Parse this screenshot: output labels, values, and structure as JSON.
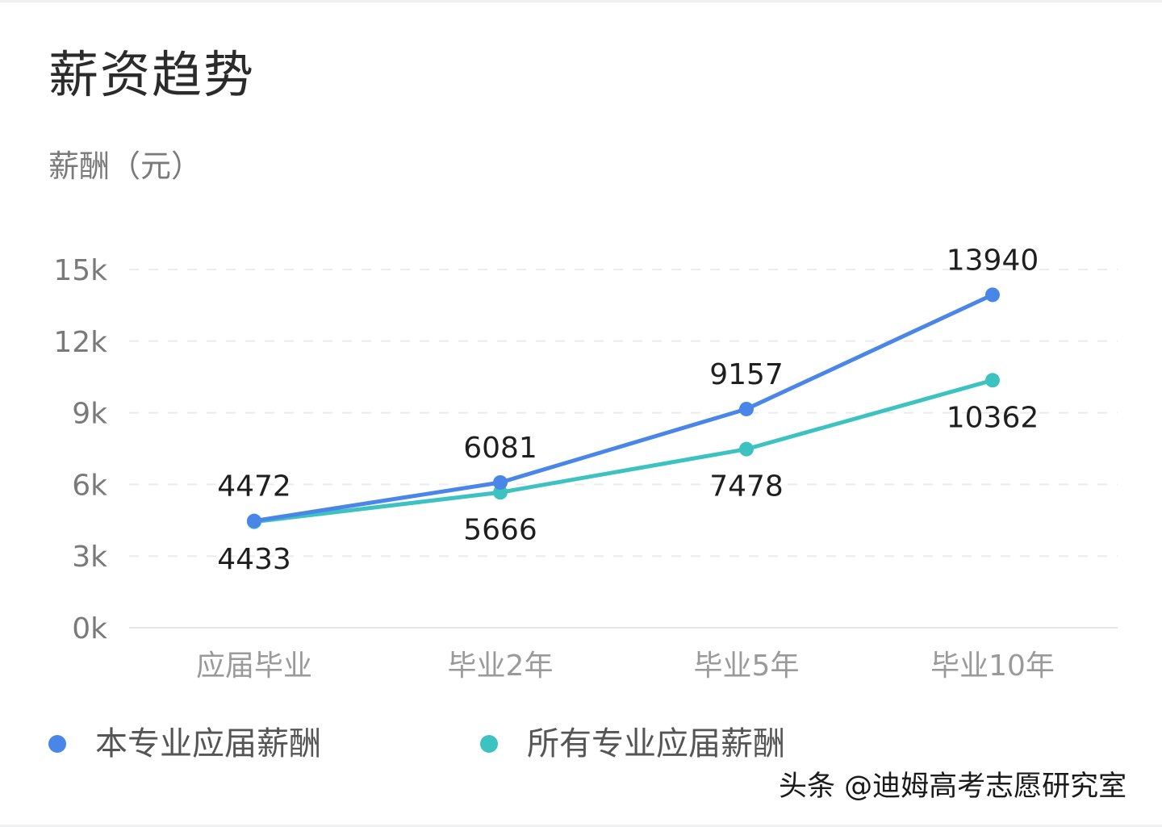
{
  "title": "薪资趋势",
  "watermark": "头条 @迪姆高考志愿研究室",
  "chart_data": {
    "type": "line",
    "ylabel": "薪酬（元）",
    "xlabel": "",
    "categories": [
      "应届毕业",
      "毕业2年",
      "毕业5年",
      "毕业10年"
    ],
    "y_ticks": [
      0,
      3000,
      6000,
      9000,
      12000,
      15000
    ],
    "y_tick_labels": [
      "0k",
      "3k",
      "6k",
      "9k",
      "12k",
      "15k"
    ],
    "ylim": [
      0,
      15000
    ],
    "grid": "horizontal-dashed",
    "legend_position": "bottom",
    "series": [
      {
        "name": "本专业应届薪酬",
        "color": "#4a86e8",
        "values": [
          4472,
          6081,
          9157,
          13940
        ],
        "label_positions": [
          "above",
          "above",
          "above",
          "above"
        ]
      },
      {
        "name": "所有专业应届薪酬",
        "color": "#3cc2c0",
        "values": [
          4433,
          5666,
          7478,
          10362
        ],
        "label_positions": [
          "below",
          "below",
          "below",
          "below"
        ]
      }
    ]
  }
}
